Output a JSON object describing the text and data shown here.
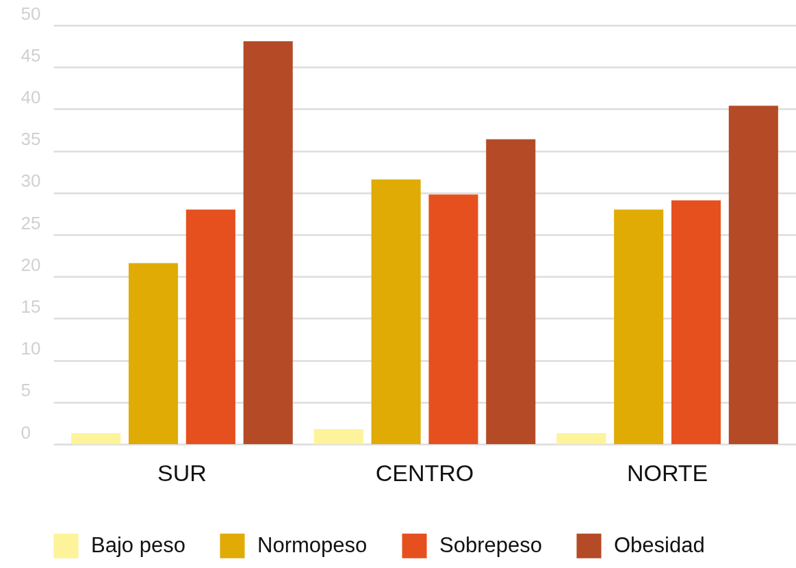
{
  "chart_data": {
    "type": "bar",
    "categories": [
      "SUR",
      "CENTRO",
      "NORTE"
    ],
    "series": [
      {
        "name": "Bajo peso",
        "color": "#fdf39a",
        "values": [
          1.3,
          1.8,
          1.3
        ]
      },
      {
        "name": "Normopeso",
        "color": "#e0ab05",
        "values": [
          21.6,
          31.6,
          28.0
        ]
      },
      {
        "name": "Sobrepeso",
        "color": "#e6501e",
        "values": [
          28.0,
          29.8,
          29.1
        ]
      },
      {
        "name": "Obesidad",
        "color": "#b54a27",
        "values": [
          48.1,
          36.4,
          40.4
        ]
      }
    ],
    "ylim": [
      0,
      50
    ],
    "yticks": [
      0,
      5,
      10,
      15,
      20,
      25,
      30,
      35,
      40,
      45,
      50
    ],
    "grid": "y",
    "legend": "bottom"
  }
}
